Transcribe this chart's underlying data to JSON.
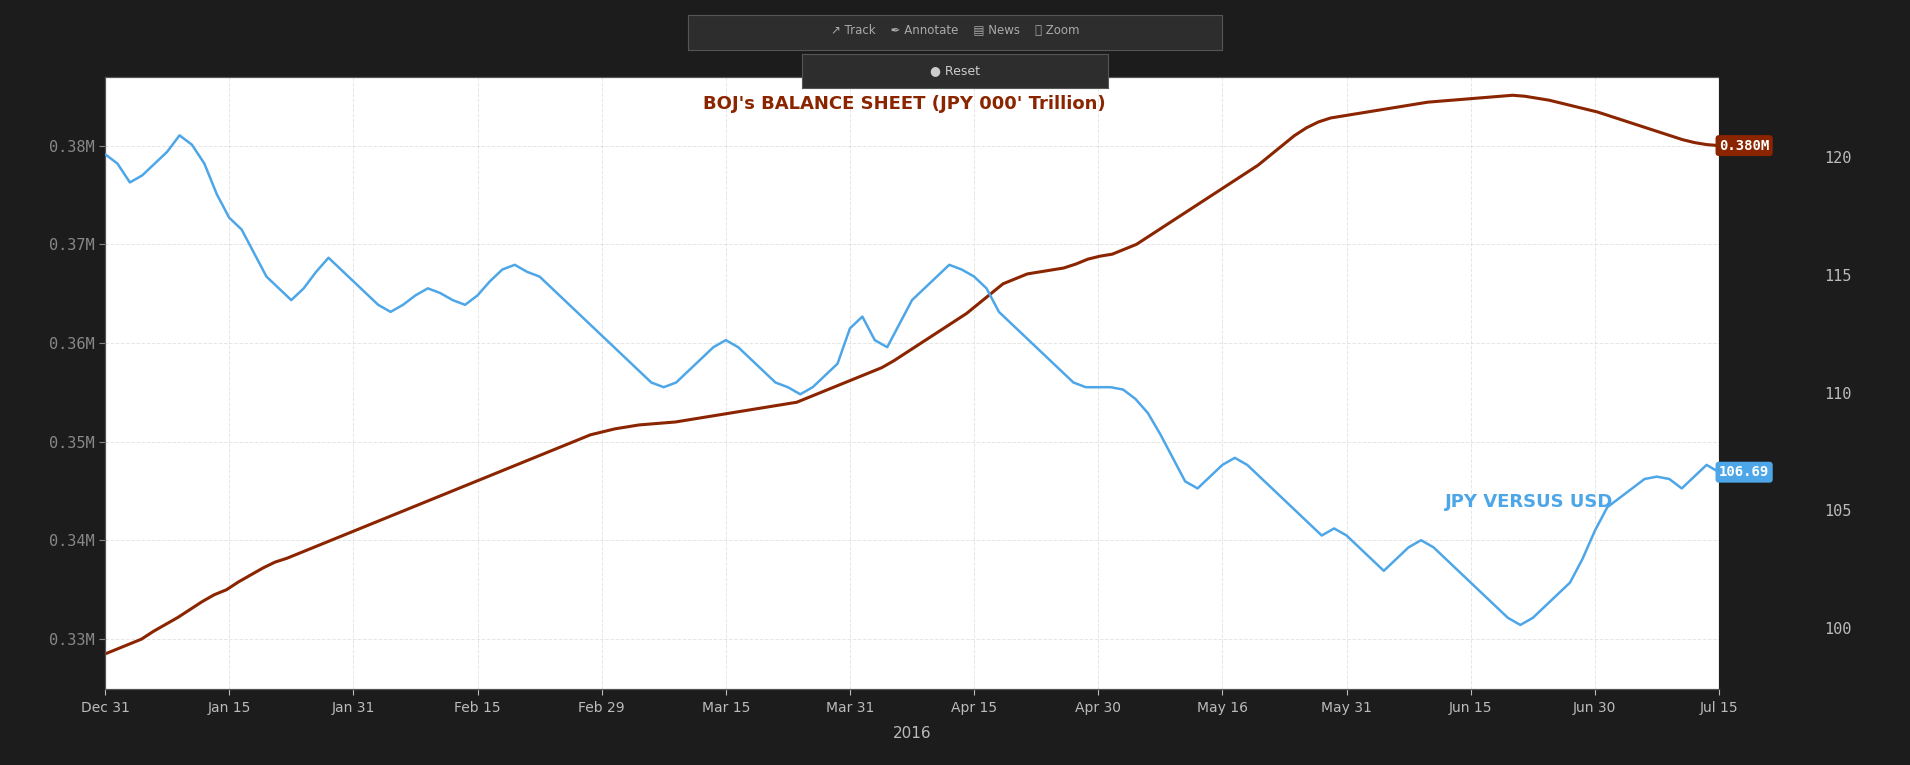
{
  "label_boj": "BOJ's BALANCE SHEET (JPY 000' Trillion)",
  "label_jpy": "JPY VERSUS USD",
  "background_color": "#1c1c1c",
  "plot_background": "#ffffff",
  "boj_color": "#8B2500",
  "jpy_color": "#4DA6E8",
  "grid_color": "#cccccc",
  "year_label": "2016",
  "boj_ylim": [
    0.325,
    0.387
  ],
  "jpy_ylim": [
    97.5,
    123.5
  ],
  "boj_yticks": [
    0.33,
    0.34,
    0.35,
    0.36,
    0.37,
    0.38
  ],
  "jpy_yticks": [
    100,
    105,
    110,
    115,
    120
  ],
  "boj_ytick_labels": [
    "0.33M",
    "0.34M",
    "0.35M",
    "0.36M",
    "0.37M",
    "0.38M"
  ],
  "jpy_ytick_labels": [
    "100",
    "105",
    "110",
    "115",
    "120"
  ],
  "x_ticks": [
    "Dec 31",
    "Jan 15",
    "Jan 31",
    "Feb 15",
    "Feb 29",
    "Mar 15",
    "Mar 31",
    "Apr 15",
    "Apr 30",
    "May 16",
    "May 31",
    "Jun 15",
    "Jun 30",
    "Jul 15"
  ],
  "boj_last_value": 0.38,
  "boj_last_label": "0.380M",
  "jpy_last_value": 106.69,
  "jpy_last_label": "106.69",
  "boj_data": [
    0.3285,
    0.329,
    0.3295,
    0.33,
    0.3308,
    0.3315,
    0.3322,
    0.333,
    0.3338,
    0.3345,
    0.335,
    0.3358,
    0.3365,
    0.3372,
    0.3378,
    0.3382,
    0.3387,
    0.3392,
    0.3397,
    0.3402,
    0.3407,
    0.3412,
    0.3417,
    0.3422,
    0.3427,
    0.3432,
    0.3437,
    0.3442,
    0.3447,
    0.3452,
    0.3457,
    0.3462,
    0.3467,
    0.3472,
    0.3477,
    0.3482,
    0.3487,
    0.3492,
    0.3497,
    0.3502,
    0.3507,
    0.351,
    0.3513,
    0.3515,
    0.3517,
    0.3518,
    0.3519,
    0.352,
    0.3522,
    0.3524,
    0.3526,
    0.3528,
    0.353,
    0.3532,
    0.3534,
    0.3536,
    0.3538,
    0.354,
    0.3545,
    0.355,
    0.3555,
    0.356,
    0.3565,
    0.357,
    0.3575,
    0.3582,
    0.359,
    0.3598,
    0.3606,
    0.3614,
    0.3622,
    0.363,
    0.364,
    0.365,
    0.366,
    0.3665,
    0.367,
    0.3672,
    0.3674,
    0.3676,
    0.368,
    0.3685,
    0.3688,
    0.369,
    0.3695,
    0.37,
    0.3708,
    0.3716,
    0.3724,
    0.3732,
    0.374,
    0.3748,
    0.3756,
    0.3764,
    0.3772,
    0.378,
    0.379,
    0.38,
    0.381,
    0.3818,
    0.3824,
    0.3828,
    0.383,
    0.3832,
    0.3834,
    0.3836,
    0.3838,
    0.384,
    0.3842,
    0.3844,
    0.3845,
    0.3846,
    0.3847,
    0.3848,
    0.3849,
    0.385,
    0.3851,
    0.385,
    0.3848,
    0.3846,
    0.3843,
    0.384,
    0.3837,
    0.3834,
    0.383,
    0.3826,
    0.3822,
    0.3818,
    0.3814,
    0.381,
    0.3806,
    0.3803,
    0.3801,
    0.38
  ],
  "jpy_data": [
    120.2,
    119.8,
    119.0,
    119.3,
    119.8,
    120.3,
    121.0,
    120.6,
    119.8,
    118.5,
    117.5,
    117.0,
    116.0,
    115.0,
    114.5,
    114.0,
    114.5,
    115.2,
    115.8,
    115.3,
    114.8,
    114.3,
    113.8,
    113.5,
    113.8,
    114.2,
    114.5,
    114.3,
    114.0,
    113.8,
    114.2,
    114.8,
    115.3,
    115.5,
    115.2,
    115.0,
    114.5,
    114.0,
    113.5,
    113.0,
    112.5,
    112.0,
    111.5,
    111.0,
    110.5,
    110.3,
    110.5,
    111.0,
    111.5,
    112.0,
    112.3,
    112.0,
    111.5,
    111.0,
    110.5,
    110.3,
    110.0,
    110.3,
    110.8,
    111.3,
    112.8,
    113.3,
    112.3,
    112.0,
    113.0,
    114.0,
    114.5,
    115.0,
    115.5,
    115.3,
    115.0,
    114.5,
    113.5,
    113.0,
    112.5,
    112.0,
    111.5,
    111.0,
    110.5,
    110.3,
    110.3,
    110.3,
    110.2,
    109.8,
    109.2,
    108.3,
    107.3,
    106.3,
    106.0,
    106.5,
    107.0,
    107.3,
    107.0,
    106.5,
    106.0,
    105.5,
    105.0,
    104.5,
    104.0,
    104.3,
    104.0,
    103.5,
    103.0,
    102.5,
    103.0,
    103.5,
    103.8,
    103.5,
    103.0,
    102.5,
    102.0,
    101.5,
    101.0,
    100.5,
    100.2,
    100.5,
    101.0,
    101.5,
    102.0,
    103.0,
    104.2,
    105.2,
    105.6,
    106.0,
    106.4,
    106.5,
    106.4,
    106.0,
    106.5,
    107.0,
    106.69
  ]
}
